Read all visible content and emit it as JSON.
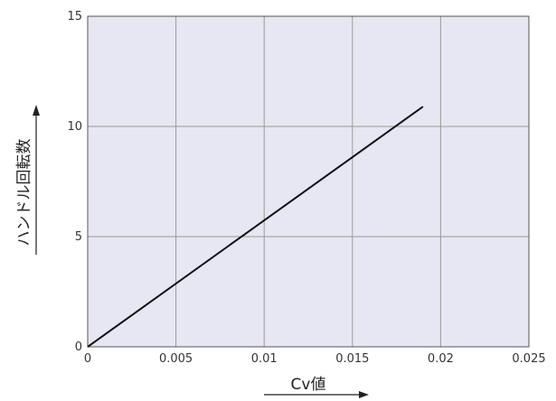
{
  "chart_data": {
    "type": "line",
    "title": "",
    "xlabel": "Cv値",
    "ylabel": "ハンドル回転数",
    "xlim": [
      0,
      0.025
    ],
    "ylim": [
      0,
      15
    ],
    "x_ticks": [
      "0",
      "0.005",
      "0.01",
      "0.015",
      "0.02",
      "0.025"
    ],
    "y_ticks": [
      "0",
      "5",
      "10",
      "15"
    ],
    "grid": true,
    "legend": "none",
    "series": [
      {
        "x": [
          0,
          0.019
        ],
        "y": [
          0,
          10.9
        ]
      }
    ],
    "colors": {
      "plot_background": "#e6e7f2",
      "grid": "#9a9a9a",
      "line": "#111111"
    }
  }
}
